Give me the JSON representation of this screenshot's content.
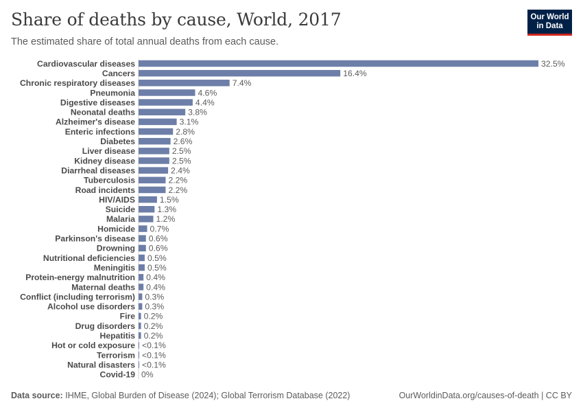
{
  "header": {
    "title": "Share of deaths by cause, World, 2017",
    "subtitle": "The estimated share of total annual deaths from each cause."
  },
  "logo": {
    "line1": "Our World",
    "line2": "in Data",
    "bg_color": "#002147",
    "accent_color": "#ce261e"
  },
  "footer": {
    "source_label": "Data source:",
    "source_text": "IHME, Global Burden of Disease (2024); Global Terrorism Database (2022)",
    "credit": "OurWorldinData.org/causes-of-death | CC BY"
  },
  "chart_data": {
    "type": "bar",
    "orientation": "horizontal",
    "bar_color": "#6d7fa8",
    "categories": [
      "Cardiovascular diseases",
      "Cancers",
      "Chronic respiratory diseases",
      "Pneumonia",
      "Digestive diseases",
      "Neonatal deaths",
      "Alzheimer's disease",
      "Enteric infections",
      "Diabetes",
      "Liver disease",
      "Kidney disease",
      "Diarrheal diseases",
      "Tuberculosis",
      "Road incidents",
      "HIV/AIDS",
      "Suicide",
      "Malaria",
      "Homicide",
      "Parkinson's disease",
      "Drowning",
      "Nutritional deficiencies",
      "Meningitis",
      "Protein-energy malnutrition",
      "Maternal deaths",
      "Conflict (including terrorism)",
      "Alcohol use disorders",
      "Fire",
      "Drug disorders",
      "Hepatitis",
      "Hot or cold exposure",
      "Terrorism",
      "Natural disasters",
      "Covid-19"
    ],
    "values": [
      32.5,
      16.4,
      7.4,
      4.6,
      4.4,
      3.8,
      3.1,
      2.8,
      2.6,
      2.5,
      2.5,
      2.4,
      2.2,
      2.2,
      1.5,
      1.3,
      1.2,
      0.7,
      0.6,
      0.6,
      0.5,
      0.5,
      0.4,
      0.4,
      0.3,
      0.3,
      0.2,
      0.2,
      0.2,
      0.05,
      0.05,
      0.05,
      0
    ],
    "value_labels": [
      "32.5%",
      "16.4%",
      "7.4%",
      "4.6%",
      "4.4%",
      "3.8%",
      "3.1%",
      "2.8%",
      "2.6%",
      "2.5%",
      "2.5%",
      "2.4%",
      "2.2%",
      "2.2%",
      "1.5%",
      "1.3%",
      "1.2%",
      "0.7%",
      "0.6%",
      "0.6%",
      "0.5%",
      "0.5%",
      "0.4%",
      "0.4%",
      "0.3%",
      "0.3%",
      "0.2%",
      "0.2%",
      "0.2%",
      "<0.1%",
      "<0.1%",
      "<0.1%",
      "0%"
    ],
    "xlim": [
      0,
      32.5
    ],
    "unit": "%",
    "grid": false,
    "legend": "none"
  }
}
